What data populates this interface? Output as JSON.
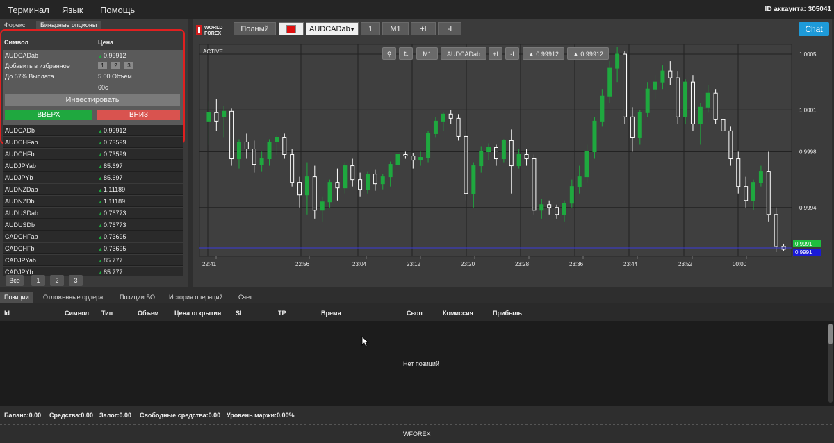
{
  "menu": {
    "terminal": "Терминал",
    "language": "Язык",
    "help": "Помощь",
    "account_id": "ID аккаунта: 305041"
  },
  "left_panel": {
    "tabs": [
      "Форекс",
      "Бинарные опционы"
    ],
    "active_tab": "Бинарные опционы",
    "header_symbol": "Символ",
    "header_price": "Цена",
    "selected": {
      "symbol": "AUDCADab",
      "price": "0.99912",
      "add_favorites": "Добавить в избранное",
      "fav_buttons": [
        "1",
        "2",
        "3"
      ],
      "payout": "До 57% Выплата",
      "volume": "5.00 Объем",
      "expiry": "60с",
      "invest": "Инвестировать",
      "up": "ВВЕРХ",
      "down": "ВНИЗ"
    },
    "symbols": [
      {
        "name": "AUDCADb",
        "price": "0.99912"
      },
      {
        "name": "AUDCHFab",
        "price": "0.73599"
      },
      {
        "name": "AUDCHFb",
        "price": "0.73599"
      },
      {
        "name": "AUDJPYab",
        "price": "85.697"
      },
      {
        "name": "AUDJPYb",
        "price": "85.697"
      },
      {
        "name": "AUDNZDab",
        "price": "1.11189"
      },
      {
        "name": "AUDNZDb",
        "price": "1.11189"
      },
      {
        "name": "AUDUSDab",
        "price": "0.76773"
      },
      {
        "name": "AUDUSDb",
        "price": "0.76773"
      },
      {
        "name": "CADCHFab",
        "price": "0.73695"
      },
      {
        "name": "CADCHFb",
        "price": "0.73695"
      },
      {
        "name": "CADJPYab",
        "price": "85.777"
      },
      {
        "name": "CADJPYb",
        "price": "85.777"
      }
    ],
    "pages": [
      "Все",
      "1",
      "2",
      "3"
    ]
  },
  "chart_toolbar": {
    "logo_line1": "WORLD",
    "logo_line2": "FOREX",
    "full": "Полный",
    "symbol_select": "AUDCADab",
    "one": "1",
    "timeframe": "M1",
    "plus": "+I",
    "minus": "-I",
    "chat": "Chat",
    "active_color": "#e01010"
  },
  "chart_inner_toolbar": {
    "active_label": "ACTIVE",
    "timeframe": "M1",
    "symbol": "AUDCADab",
    "plus": "+I",
    "minus": "-I",
    "price_a": "▲ 0.99912",
    "price_b": "▲ 0.99912"
  },
  "chart_data": {
    "type": "candlestick",
    "x_ticks": [
      "22:41",
      "22:56",
      "23:04",
      "23:12",
      "23:20",
      "23:28",
      "23:36",
      "23:44",
      "23:52",
      "00:00"
    ],
    "y_ticks": [
      "1.0005",
      "1.0001",
      "0.9998",
      "0.9994"
    ],
    "ylim": [
      0.99905,
      1.00057
    ],
    "current_price_labels": [
      "0.9991",
      "0.9991"
    ],
    "grid": true,
    "colors": {
      "up": "#1fa83f",
      "down": "#ffffff",
      "price_line": "#3b3bd9"
    },
    "candles": [
      {
        "o": 1.00002,
        "h": 1.00016,
        "l": 0.99985,
        "c": 1.00008
      },
      {
        "o": 1.00008,
        "h": 1.00018,
        "l": 0.99995,
        "c": 1.00002
      },
      {
        "o": 1.00005,
        "h": 1.00013,
        "l": 0.9999,
        "c": 1.00009
      },
      {
        "o": 1.00009,
        "h": 1.00011,
        "l": 0.9997,
        "c": 0.99975
      },
      {
        "o": 0.99975,
        "h": 0.99989,
        "l": 0.99968,
        "c": 0.99987
      },
      {
        "o": 0.99987,
        "h": 0.99993,
        "l": 0.99975,
        "c": 0.99982
      },
      {
        "o": 0.99982,
        "h": 0.99988,
        "l": 0.99965,
        "c": 0.99971
      },
      {
        "o": 0.99971,
        "h": 0.9998,
        "l": 0.99966,
        "c": 0.99975
      },
      {
        "o": 0.99975,
        "h": 0.99989,
        "l": 0.9997,
        "c": 0.99987
      },
      {
        "o": 0.99987,
        "h": 0.99992,
        "l": 0.99978,
        "c": 0.9999
      },
      {
        "o": 0.9999,
        "h": 0.99993,
        "l": 0.99975,
        "c": 0.99978
      },
      {
        "o": 0.99978,
        "h": 0.99982,
        "l": 0.99955,
        "c": 0.99958
      },
      {
        "o": 0.99958,
        "h": 0.99962,
        "l": 0.9994,
        "c": 0.99949
      },
      {
        "o": 0.99949,
        "h": 0.99972,
        "l": 0.99935,
        "c": 0.99962
      },
      {
        "o": 0.99962,
        "h": 0.9997,
        "l": 0.99932,
        "c": 0.99938
      },
      {
        "o": 0.99938,
        "h": 0.99948,
        "l": 0.9993,
        "c": 0.99944
      },
      {
        "o": 0.99944,
        "h": 0.9996,
        "l": 0.9994,
        "c": 0.99958
      },
      {
        "o": 0.99958,
        "h": 0.99968,
        "l": 0.99945,
        "c": 0.99954
      },
      {
        "o": 0.99954,
        "h": 0.99972,
        "l": 0.9995,
        "c": 0.9997
      },
      {
        "o": 0.9997,
        "h": 0.99975,
        "l": 0.99955,
        "c": 0.9996
      },
      {
        "o": 0.9996,
        "h": 0.99965,
        "l": 0.99948,
        "c": 0.99953
      },
      {
        "o": 0.99953,
        "h": 0.99966,
        "l": 0.9995,
        "c": 0.99964
      },
      {
        "o": 0.99964,
        "h": 0.99967,
        "l": 0.99952,
        "c": 0.99957
      },
      {
        "o": 0.99957,
        "h": 0.99964,
        "l": 0.99953,
        "c": 0.99962
      },
      {
        "o": 0.99962,
        "h": 0.99973,
        "l": 0.99955,
        "c": 0.99971
      },
      {
        "o": 0.99971,
        "h": 0.9998,
        "l": 0.99966,
        "c": 0.99978
      },
      {
        "o": 0.99978,
        "h": 0.9998,
        "l": 0.99975,
        "c": 0.99977
      },
      {
        "o": 0.99977,
        "h": 0.99979,
        "l": 0.99968,
        "c": 0.99974
      },
      {
        "o": 0.99974,
        "h": 0.9998,
        "l": 0.9997,
        "c": 0.99976
      },
      {
        "o": 0.99976,
        "h": 0.99995,
        "l": 0.99972,
        "c": 0.99993
      },
      {
        "o": 0.99993,
        "h": 1.00005,
        "l": 0.9999,
        "c": 1.00002
      },
      {
        "o": 1.00002,
        "h": 1.00008,
        "l": 0.99995,
        "c": 1.00007
      },
      {
        "o": 1.00007,
        "h": 1.0001,
        "l": 1.0,
        "c": 1.00004
      },
      {
        "o": 1.00004,
        "h": 1.00007,
        "l": 0.99988,
        "c": 0.99991
      },
      {
        "o": 0.99991,
        "h": 0.99995,
        "l": 0.99945,
        "c": 0.9995
      },
      {
        "o": 0.9995,
        "h": 0.99972,
        "l": 0.9994,
        "c": 0.9997
      },
      {
        "o": 0.9997,
        "h": 0.99984,
        "l": 0.99965,
        "c": 0.9998
      },
      {
        "o": 0.9998,
        "h": 0.99986,
        "l": 0.99974,
        "c": 0.99983
      },
      {
        "o": 0.99983,
        "h": 0.99985,
        "l": 0.9997,
        "c": 0.99975
      },
      {
        "o": 0.99975,
        "h": 0.99989,
        "l": 0.99972,
        "c": 0.99988
      },
      {
        "o": 0.99988,
        "h": 0.99996,
        "l": 0.9995,
        "c": 0.9997
      },
      {
        "o": 0.9997,
        "h": 0.99982,
        "l": 0.99968,
        "c": 0.99978
      },
      {
        "o": 0.99978,
        "h": 0.99982,
        "l": 0.9997,
        "c": 0.99975
      },
      {
        "o": 0.99975,
        "h": 0.99978,
        "l": 0.99935,
        "c": 0.99938
      },
      {
        "o": 0.99938,
        "h": 0.99946,
        "l": 0.99932,
        "c": 0.99942
      },
      {
        "o": 0.99942,
        "h": 0.99945,
        "l": 0.99935,
        "c": 0.9994
      },
      {
        "o": 0.9994,
        "h": 0.99942,
        "l": 0.99932,
        "c": 0.99935
      },
      {
        "o": 0.99935,
        "h": 0.99945,
        "l": 0.9993,
        "c": 0.99943
      },
      {
        "o": 0.99943,
        "h": 0.9996,
        "l": 0.9994,
        "c": 0.99955
      },
      {
        "o": 0.99955,
        "h": 0.9997,
        "l": 0.9995,
        "c": 0.99962
      },
      {
        "o": 0.99962,
        "h": 0.99985,
        "l": 0.99958,
        "c": 0.9998
      },
      {
        "o": 0.9998,
        "h": 1.00005,
        "l": 0.99975,
        "c": 1.00002
      },
      {
        "o": 1.00002,
        "h": 1.00025,
        "l": 0.99998,
        "c": 1.0002
      },
      {
        "o": 1.0002,
        "h": 1.00045,
        "l": 1.00015,
        "c": 1.0004
      },
      {
        "o": 1.0004,
        "h": 1.00055,
        "l": 1.0003,
        "c": 1.0005
      },
      {
        "o": 1.0005,
        "h": 1.00052,
        "l": 1.0,
        "c": 1.00005
      },
      {
        "o": 1.00005,
        "h": 1.00012,
        "l": 0.9998,
        "c": 0.9999
      },
      {
        "o": 0.9999,
        "h": 1.0001,
        "l": 0.99985,
        "c": 1.00008
      },
      {
        "o": 1.00008,
        "h": 1.0003,
        "l": 1.00005,
        "c": 1.00025
      },
      {
        "o": 1.00025,
        "h": 1.00035,
        "l": 1.00018,
        "c": 1.0003
      },
      {
        "o": 1.0003,
        "h": 1.00042,
        "l": 1.00025,
        "c": 1.00038
      },
      {
        "o": 1.00038,
        "h": 1.00045,
        "l": 1.00028,
        "c": 1.00033
      },
      {
        "o": 1.00033,
        "h": 1.00038,
        "l": 1.0,
        "c": 1.00005
      },
      {
        "o": 1.00005,
        "h": 1.00032,
        "l": 1.0,
        "c": 1.0003
      },
      {
        "o": 1.0003,
        "h": 1.00035,
        "l": 0.99995,
        "c": 1.0
      },
      {
        "o": 1.0,
        "h": 1.00015,
        "l": 0.99985,
        "c": 1.00012
      },
      {
        "o": 1.00012,
        "h": 1.00028,
        "l": 1.00008,
        "c": 1.00022
      },
      {
        "o": 1.00022,
        "h": 1.00025,
        "l": 1.0,
        "c": 1.00003
      },
      {
        "o": 1.00003,
        "h": 1.0001,
        "l": 0.9999,
        "c": 0.99995
      },
      {
        "o": 0.99995,
        "h": 0.99998,
        "l": 0.9997,
        "c": 0.99975
      },
      {
        "o": 0.99975,
        "h": 0.9998,
        "l": 0.9995,
        "c": 0.99955
      },
      {
        "o": 0.99955,
        "h": 0.99962,
        "l": 0.9994,
        "c": 0.99945
      },
      {
        "o": 0.99945,
        "h": 0.9996,
        "l": 0.99938,
        "c": 0.99958
      },
      {
        "o": 0.99958,
        "h": 0.9997,
        "l": 0.99955,
        "c": 0.99966
      },
      {
        "o": 0.99966,
        "h": 0.9998,
        "l": 0.9993,
        "c": 0.99935
      },
      {
        "o": 0.99935,
        "h": 0.9994,
        "l": 0.99908,
        "c": 0.99912
      },
      {
        "o": 0.99912,
        "h": 0.99914,
        "l": 0.99909,
        "c": 0.9991
      }
    ]
  },
  "bottom_tabs": [
    "Позиции",
    "Отложенные ордера",
    "Позиции БО",
    "История операций",
    "Счет"
  ],
  "positions_header": [
    "Id",
    "Символ",
    "Тип",
    "Объем",
    "Цена открытия",
    "SL",
    "TP",
    "Время",
    "Своп",
    "Комиссия",
    "Прибыль"
  ],
  "empty_message": "Нет позиций",
  "status": {
    "balance": "Баланс:0.00",
    "funds": "Средства:0.00",
    "margin": "Залог:0.00",
    "free": "Свободные средства:0.00",
    "level": "Уровень маржи:0.00%"
  },
  "footer": "WFOREX"
}
